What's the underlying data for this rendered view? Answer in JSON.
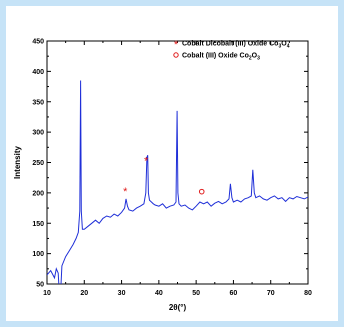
{
  "chart_data": {
    "type": "line",
    "xlabel": "2θ(°)",
    "ylabel": "Intensity",
    "xlim": [
      10,
      80
    ],
    "ylim": [
      50,
      450
    ],
    "x_ticks": [
      "10",
      "20",
      "30",
      "40",
      "50",
      "60",
      "70",
      "80"
    ],
    "y_ticks": [
      "50",
      "100",
      "150",
      "200",
      "250",
      "300",
      "350",
      "400",
      "450"
    ],
    "grid": false,
    "legend_position": "top-right",
    "line_color": "#1f2fd8",
    "series": [
      {
        "x": [
          10,
          11,
          12,
          12.5,
          13,
          13.5,
          14,
          15,
          16,
          17,
          17.8,
          18.4,
          18.8,
          19.0,
          19.2,
          19.5,
          20,
          21,
          22,
          23,
          24,
          25,
          26,
          27,
          28,
          29,
          30,
          30.8,
          31.2,
          31.6,
          32,
          33,
          34,
          35,
          36,
          36.5,
          36.8,
          37.0,
          37.2,
          37.5,
          38,
          38.5,
          39,
          40,
          41,
          42,
          43,
          44,
          44.6,
          44.9,
          45.1,
          45.4,
          46,
          47,
          48,
          49,
          50,
          51,
          52,
          53,
          54,
          55,
          56,
          57,
          58,
          58.8,
          59.2,
          59.6,
          60,
          61,
          62,
          63,
          64,
          64.8,
          65.2,
          65.6,
          66,
          67,
          68,
          69,
          70,
          71,
          72,
          73,
          74,
          75,
          76,
          77,
          78,
          79,
          80
        ],
        "y": [
          65,
          72,
          60,
          75,
          68,
          15,
          80,
          95,
          105,
          115,
          125,
          135,
          170,
          385,
          170,
          140,
          140,
          145,
          150,
          155,
          150,
          158,
          162,
          160,
          165,
          162,
          168,
          175,
          190,
          178,
          172,
          170,
          175,
          178,
          182,
          200,
          258,
          262,
          200,
          188,
          185,
          182,
          180,
          178,
          182,
          175,
          178,
          180,
          185,
          335,
          200,
          182,
          178,
          180,
          175,
          172,
          178,
          185,
          182,
          185,
          178,
          183,
          186,
          182,
          185,
          190,
          215,
          192,
          185,
          188,
          185,
          190,
          192,
          195,
          238,
          200,
          192,
          195,
          190,
          188,
          192,
          195,
          190,
          192,
          186,
          192,
          190,
          194,
          192,
          190,
          193
        ]
      }
    ],
    "markers": [
      {
        "symbol": "*",
        "x": 31,
        "y": 203,
        "color": "#e01a1a"
      },
      {
        "symbol": "*",
        "x": 36.6,
        "y": 253,
        "color": "#e01a1a"
      },
      {
        "symbol": "o",
        "x": 51.5,
        "y": 202,
        "color": "#e01a1a"
      }
    ],
    "legend": [
      {
        "symbol": "*",
        "text": "Cobalt Dicobalt (III) Oxide Co",
        "sub1": "3",
        "mid": "O",
        "sub2": "4"
      },
      {
        "symbol": "o",
        "text": "Cobalt (III) Oxide Co",
        "sub1": "2",
        "mid": "O",
        "sub2": "3"
      }
    ]
  }
}
